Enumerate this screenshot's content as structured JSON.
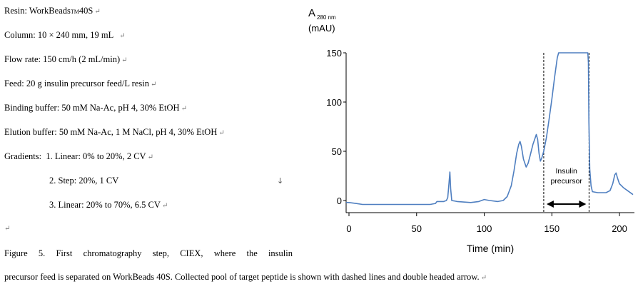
{
  "methods": {
    "resin": {
      "text": "Resin: WorkBeads",
      "tm": "TM",
      "rest": " 40S"
    },
    "column": "Column: 10 × 240 mm, 19 mL",
    "flow_rate": "Flow rate: 150 cm/h (2 mL/min)",
    "feed": "Feed: 20 g insulin precursor feed/L resin",
    "binding_buffer": "Binding buffer: 50 mM Na-Ac, pH 4, 30% EtOH",
    "elution_buffer": "Elution buffer: 50 mM Na-Ac, 1 M NaCl, pH 4, 30% EtOH",
    "gradients_label": "Gradients:",
    "gradients": [
      "1. Linear: 0% to 20%, 2 CV",
      "2. Step: 20%, 1 CV",
      "3. Linear: 20% to 70%, 6.5 CV"
    ]
  },
  "marks": {
    "para": "↵",
    "down": "↓"
  },
  "caption": {
    "line1": "Figure 5. First chromatography step, CIEX, where the insulin",
    "line2": "precursor feed is separated on WorkBeads 40S. Collected pool of target peptide is shown with dashed lines and double headed arrow."
  },
  "chart_data": {
    "type": "line",
    "ylabel_main": "A",
    "ylabel_sub": "280 nm",
    "ylabel_unit": "(mAU)",
    "xlabel": "Time (min)",
    "xlim": [
      0,
      210
    ],
    "ylim": [
      0,
      150
    ],
    "x_ticks": [
      0,
      50,
      100,
      150,
      200
    ],
    "y_ticks": [
      0,
      50,
      100,
      150
    ],
    "series_color": "#4f7fc0",
    "points": [
      [
        -5,
        -2
      ],
      [
        0,
        -2
      ],
      [
        5,
        -3
      ],
      [
        10,
        -4
      ],
      [
        20,
        -4
      ],
      [
        40,
        -4
      ],
      [
        60,
        -4
      ],
      [
        64,
        -3
      ],
      [
        65,
        -1
      ],
      [
        70,
        -1
      ],
      [
        72,
        0
      ],
      [
        73,
        3
      ],
      [
        74,
        18
      ],
      [
        74.6,
        29
      ],
      [
        75.2,
        12
      ],
      [
        76,
        0
      ],
      [
        80,
        -1
      ],
      [
        90,
        -2
      ],
      [
        96,
        -1
      ],
      [
        100,
        1
      ],
      [
        104,
        0
      ],
      [
        110,
        -1
      ],
      [
        114,
        0
      ],
      [
        117,
        4
      ],
      [
        120,
        15
      ],
      [
        122,
        30
      ],
      [
        124,
        48
      ],
      [
        125.5,
        57
      ],
      [
        126.5,
        60
      ],
      [
        127.5,
        55
      ],
      [
        129,
        42
      ],
      [
        131,
        34
      ],
      [
        132.5,
        38
      ],
      [
        134,
        46
      ],
      [
        136,
        57
      ],
      [
        137.5,
        63
      ],
      [
        138.5,
        67
      ],
      [
        139.5,
        62
      ],
      [
        140.5,
        48
      ],
      [
        141.5,
        40
      ],
      [
        142.5,
        43
      ],
      [
        144,
        50
      ],
      [
        146,
        64
      ],
      [
        148,
        83
      ],
      [
        150,
        103
      ],
      [
        152,
        125
      ],
      [
        154,
        145
      ],
      [
        155,
        155
      ],
      [
        176.6,
        155
      ],
      [
        177,
        140
      ],
      [
        177.4,
        80
      ],
      [
        178,
        32
      ],
      [
        179,
        15
      ],
      [
        180,
        9
      ],
      [
        184,
        8
      ],
      [
        190,
        8
      ],
      [
        193,
        10
      ],
      [
        195,
        17
      ],
      [
        196.5,
        26
      ],
      [
        197.5,
        28
      ],
      [
        198.5,
        23
      ],
      [
        200,
        17
      ],
      [
        203,
        13
      ],
      [
        206,
        10
      ],
      [
        210,
        6
      ]
    ],
    "pool_start": 144,
    "pool_end": 177.5,
    "annotation": [
      "Insulin",
      "precursor"
    ]
  }
}
